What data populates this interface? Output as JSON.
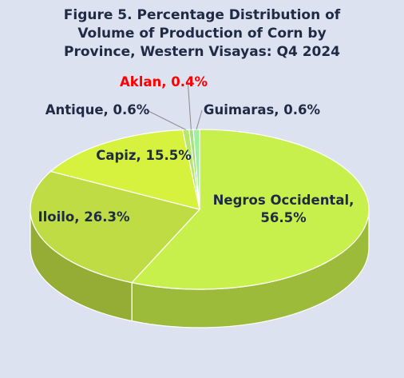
{
  "chart_data": {
    "type": "pie3d",
    "title": "Figure 5. Percentage Distribution of Volume of Production of Corn by Province, Western Visayas: Q4 2024",
    "values": [
      56.5,
      26.3,
      15.5,
      0.6,
      0.4,
      0.6
    ],
    "value_labels": [
      "Negros Occidental, 56.5%",
      "Iloilo, 26.3%",
      "Capiz, 15.5%",
      "Antique, 0.6%",
      "Aklan, 0.4%",
      "Guimaras, 0.6%"
    ],
    "colors": [
      "#c8f04c",
      "#bfdc44",
      "#d6f23e",
      "#b6e66a",
      "#a6e07a",
      "#9ef0a0"
    ],
    "value_label_colors": [
      "#1f2a44",
      "#1f2a44",
      "#1f2a44",
      "#1f2a44",
      "#ff0000",
      "#1f2a44"
    ]
  }
}
